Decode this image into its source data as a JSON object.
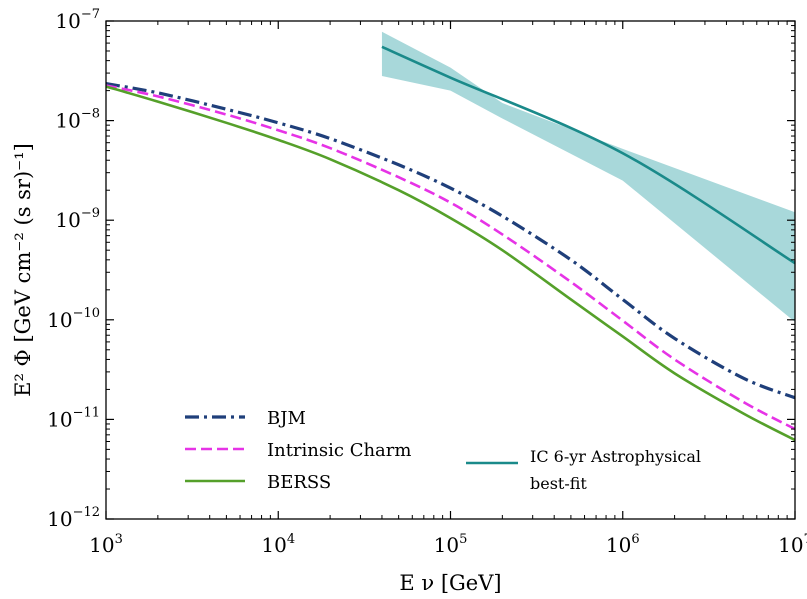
{
  "chart_data": {
    "type": "line",
    "xscale": "log",
    "yscale": "log",
    "xlim": [
      1000,
      10000000
    ],
    "ylim": [
      1e-12,
      1e-07
    ],
    "xlabel": "E ν [GeV]",
    "ylabel": "E² Φ [GeV cm⁻² (s sr)⁻¹]",
    "x_ticks": [
      {
        "value": 1000,
        "base": "10",
        "exp": "3"
      },
      {
        "value": 10000,
        "base": "10",
        "exp": "4"
      },
      {
        "value": 100000,
        "base": "10",
        "exp": "5"
      },
      {
        "value": 1000000,
        "base": "10",
        "exp": "6"
      },
      {
        "value": 10000000,
        "base": "10",
        "exp": "7"
      }
    ],
    "y_ticks": [
      {
        "value": 1e-12,
        "base": "10",
        "exp": "−12"
      },
      {
        "value": 1e-11,
        "base": "10",
        "exp": "−11"
      },
      {
        "value": 1e-10,
        "base": "10",
        "exp": "−10"
      },
      {
        "value": 1e-09,
        "base": "10",
        "exp": "−9"
      },
      {
        "value": 1e-08,
        "base": "10",
        "exp": "−8"
      },
      {
        "value": 1e-07,
        "base": "10",
        "exp": "−7"
      }
    ],
    "series": [
      {
        "name": "BJM",
        "color": "#1f3f7a",
        "style": "dashdot",
        "points": [
          [
            1000,
            2.35e-08
          ],
          [
            2000,
            1.9e-08
          ],
          [
            5000,
            1.3e-08
          ],
          [
            10000,
            9.5e-09
          ],
          [
            20000,
            6.6e-09
          ],
          [
            50000,
            3.6e-09
          ],
          [
            100000,
            2.1e-09
          ],
          [
            200000,
            1.1e-09
          ],
          [
            500000,
            4e-10
          ],
          [
            1000000,
            1.6e-10
          ],
          [
            2000000,
            6.5e-11
          ],
          [
            5000000,
            2.6e-11
          ],
          [
            10000000,
            1.65e-11
          ]
        ]
      },
      {
        "name": "Intrinsic Charm",
        "color": "#e633e6",
        "style": "dashed",
        "points": [
          [
            1000,
            2.25e-08
          ],
          [
            2000,
            1.75e-08
          ],
          [
            5000,
            1.15e-08
          ],
          [
            10000,
            8e-09
          ],
          [
            20000,
            5.3e-09
          ],
          [
            50000,
            2.7e-09
          ],
          [
            100000,
            1.5e-09
          ],
          [
            200000,
            7.2e-10
          ],
          [
            500000,
            2.4e-10
          ],
          [
            1000000,
            9.8e-11
          ],
          [
            2000000,
            4e-11
          ],
          [
            5000000,
            1.5e-11
          ],
          [
            10000000,
            8e-12
          ]
        ]
      },
      {
        "name": "BERSS",
        "color": "#55a02a",
        "style": "solid",
        "points": [
          [
            1000,
            2.2e-08
          ],
          [
            2000,
            1.55e-08
          ],
          [
            5000,
            9.5e-09
          ],
          [
            10000,
            6.4e-09
          ],
          [
            20000,
            4.1e-09
          ],
          [
            50000,
            2e-09
          ],
          [
            100000,
            1.05e-09
          ],
          [
            200000,
            5e-10
          ],
          [
            500000,
            1.6e-10
          ],
          [
            1000000,
            6.8e-11
          ],
          [
            2000000,
            2.9e-11
          ],
          [
            5000000,
            1.15e-11
          ],
          [
            10000000,
            6.2e-12
          ]
        ]
      },
      {
        "name": "IC 6-yr Astrophysical best-fit",
        "color": "#1a8a8a",
        "style": "solid",
        "points": [
          [
            40000,
            5.5e-08
          ],
          [
            100000,
            2.7e-08
          ],
          [
            1000000,
            4.7e-09
          ],
          [
            10000000,
            3.7e-10
          ]
        ]
      }
    ],
    "bands": [
      {
        "name": "IC 6-yr Astrophysical best-fit",
        "color": "#a8d8da",
        "upper": [
          [
            40000,
            7.8e-08
          ],
          [
            100000,
            3.4e-08
          ],
          [
            200000,
            1.5e-08
          ],
          [
            1000000,
            5.2e-09
          ],
          [
            10000000,
            1.2e-09
          ]
        ],
        "lower": [
          [
            40000,
            2.8e-08
          ],
          [
            100000,
            2e-08
          ],
          [
            200000,
            1.05e-08
          ],
          [
            1000000,
            2.5e-09
          ],
          [
            10000000,
            9.5e-11
          ]
        ]
      }
    ],
    "legend": {
      "placement": "lower-left",
      "entries": [
        {
          "label": "BJM",
          "series": 0
        },
        {
          "label": "Intrinsic Charm",
          "series": 1
        },
        {
          "label": "BERSS",
          "series": 2
        },
        {
          "label_line1": "IC 6-yr Astrophysical",
          "label_line2": "best-fit",
          "series": 3
        }
      ]
    }
  }
}
